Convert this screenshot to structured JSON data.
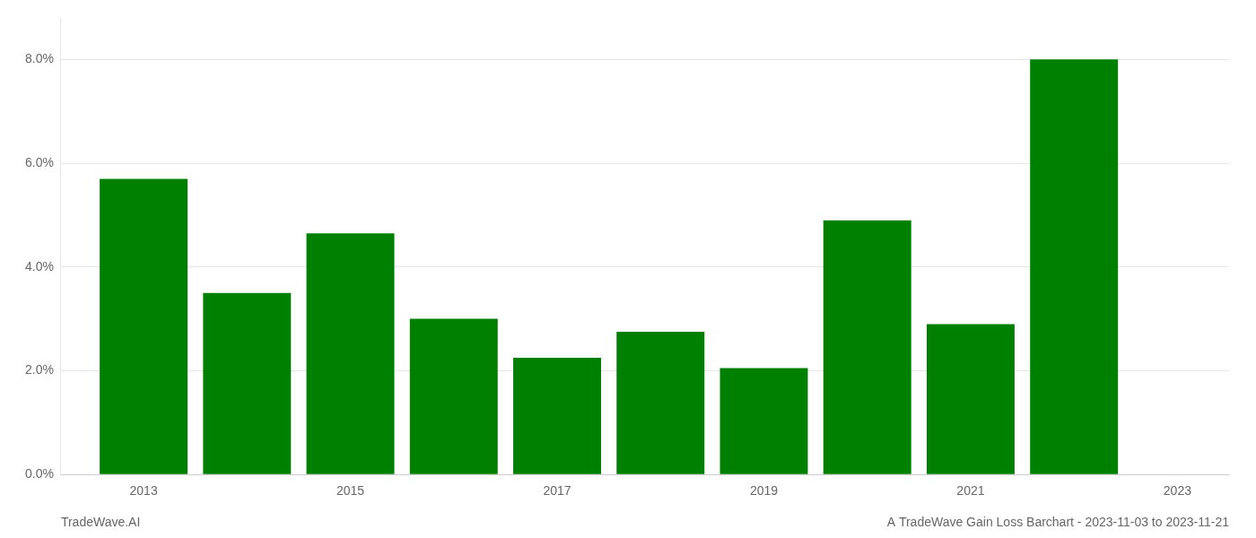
{
  "chart_data": {
    "type": "bar",
    "x": [
      2013,
      2014,
      2015,
      2016,
      2017,
      2018,
      2019,
      2020,
      2021,
      2022
    ],
    "values": [
      0.057,
      0.035,
      0.0465,
      0.03,
      0.0225,
      0.0275,
      0.0205,
      0.049,
      0.029,
      0.08
    ],
    "color": "#008000",
    "xlim": [
      2012.2,
      2023.5
    ],
    "xticks": [
      2013,
      2015,
      2017,
      2019,
      2021,
      2023
    ],
    "ylim": [
      0.0,
      0.088
    ],
    "yticks": [
      {
        "value": 0.0,
        "label": "0.0%"
      },
      {
        "value": 0.02,
        "label": "2.0%"
      },
      {
        "value": 0.04,
        "label": "4.0%"
      },
      {
        "value": 0.06,
        "label": "6.0%"
      },
      {
        "value": 0.08,
        "label": "8.0%"
      }
    ],
    "grid": true,
    "annotations": [
      "TradeWave.AI",
      "A TradeWave Gain Loss Barchart - 2023-11-03 to 2023-11-21"
    ]
  }
}
